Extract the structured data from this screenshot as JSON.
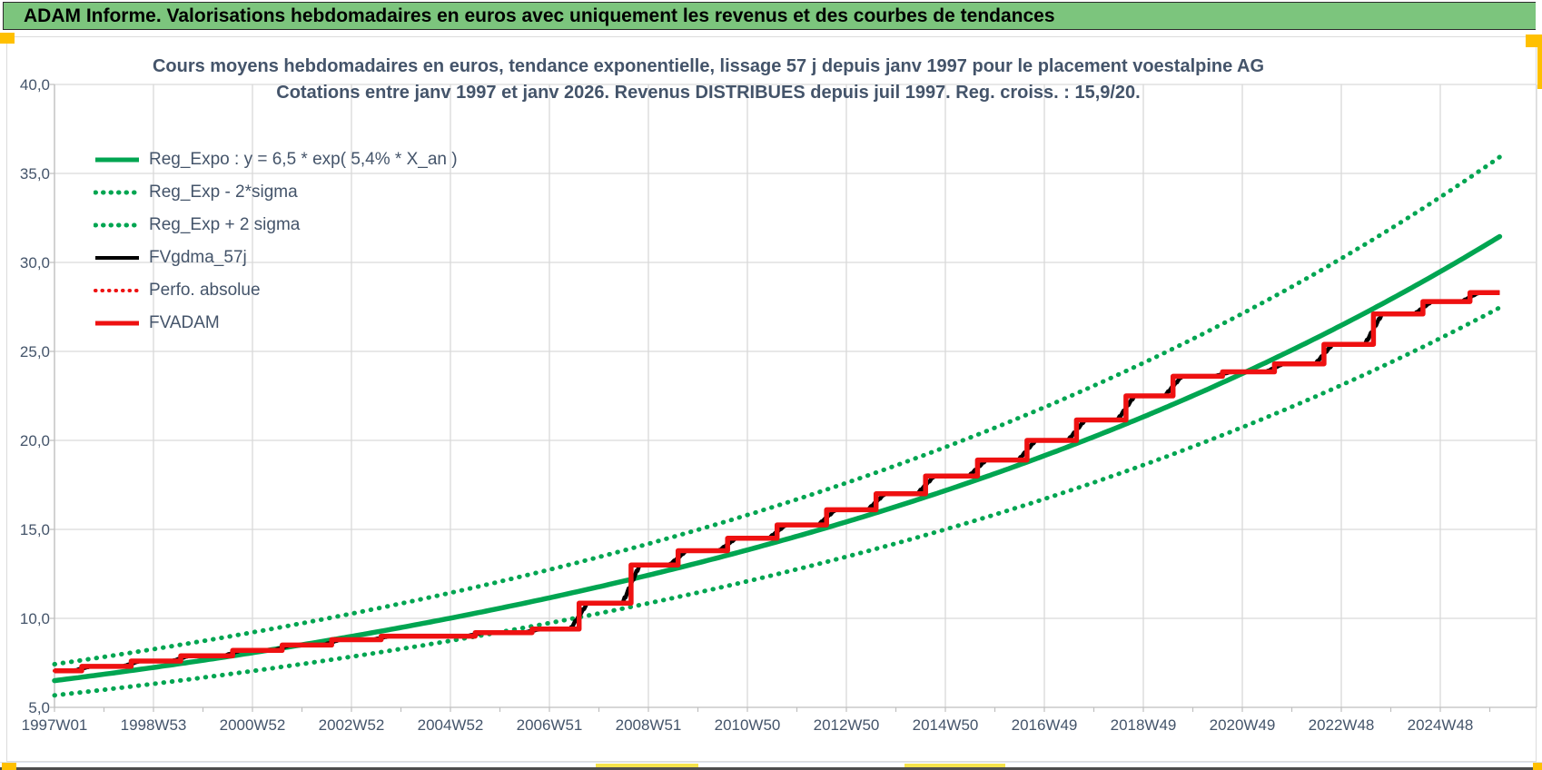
{
  "banner": {
    "text": "ADAM Informe. Valorisations hebdomadaires en euros avec uniquement les revenus et des courbes de tendances"
  },
  "chart": {
    "title_line1": "Cours moyens hebdomadaires en euros, tendance exponentielle, lissage 57 j depuis janv 1997 pour le placement voestalpine AG",
    "title_line2": "Cotations entre janv 1997 et janv 2026. Revenus DISTRIBUES depuis juil 1997. Reg. croiss. : 15,9/20.",
    "legend": [
      {
        "label": "Reg_Expo : y = 6,5 * exp( 5,4% *  X_an )",
        "color": "#00A551",
        "style": "solid",
        "weight": 5
      },
      {
        "label": "Reg_Exp - 2*sigma",
        "color": "#00A551",
        "style": "dotted",
        "weight": 5
      },
      {
        "label": "Reg_Exp + 2 sigma",
        "color": "#00A551",
        "style": "dotted",
        "weight": 5
      },
      {
        "label": "FVgdma_57j",
        "color": "#000000",
        "style": "solid",
        "weight": 4
      },
      {
        "label": "Perfo. absolue",
        "color": "#EE1111",
        "style": "dotted",
        "weight": 4
      },
      {
        "label": "FVADAM",
        "color": "#EE1111",
        "style": "solid",
        "weight": 5
      }
    ]
  },
  "chart_data": {
    "type": "line",
    "title": "Cours moyens hebdomadaires en euros, tendance exponentielle, lissage 57 j depuis janv 1997 pour le placement voestalpine AG",
    "subtitle": "Cotations entre janv 1997 et janv 2026. Revenus DISTRIBUES depuis juil 1997. Reg. croiss. : 15,9/20.",
    "x_axis": {
      "start_year": 1997,
      "end_year": 2027.4,
      "tick_years": [
        1997,
        1999,
        2001,
        2003,
        2005,
        2007,
        2009,
        2011,
        2013,
        2015,
        2017,
        2019,
        2021,
        2023,
        2025
      ],
      "tick_labels": [
        "1997W01",
        "1998W53",
        "2000W52",
        "2002W52",
        "2004W52",
        "2006W51",
        "2008W51",
        "2010W50",
        "2012W50",
        "2014W50",
        "2016W49",
        "2018W49",
        "2020W49",
        "2022W48",
        "2024W48"
      ],
      "minor_tick_interval_years": 1
    },
    "y_axis": {
      "min": 5,
      "max": 40,
      "step": 5,
      "tick_labels": [
        "5,0",
        "10,0",
        "15,0",
        "20,0",
        "25,0",
        "30,0",
        "35,0",
        "40,0"
      ]
    },
    "grid": true,
    "legend_position": "top-left-inside",
    "regression": {
      "formula": "y = 6,5 * exp( 5,4% * X_an )",
      "a": 6.5,
      "rate": 0.054,
      "band_upper_factor": 1.142,
      "band_lower_factor": 0.873
    },
    "fvadam": {
      "start": [
        1997.0,
        7.05
      ],
      "steps": [
        [
          1997.55,
          7.3
        ],
        [
          1998.55,
          7.6
        ],
        [
          1999.55,
          7.9
        ],
        [
          2000.6,
          8.2
        ],
        [
          2001.6,
          8.5
        ],
        [
          2002.6,
          8.8
        ],
        [
          2003.6,
          9.0
        ],
        [
          2005.5,
          9.2
        ],
        [
          2006.65,
          9.4
        ],
        [
          2007.6,
          10.85
        ],
        [
          2008.65,
          13.0
        ],
        [
          2009.6,
          13.8
        ],
        [
          2010.6,
          14.5
        ],
        [
          2011.6,
          15.25
        ],
        [
          2012.6,
          16.1
        ],
        [
          2013.6,
          17.0
        ],
        [
          2014.6,
          18.0
        ],
        [
          2015.65,
          18.9
        ],
        [
          2016.65,
          20.0
        ],
        [
          2017.65,
          21.15
        ],
        [
          2018.65,
          22.5
        ],
        [
          2019.6,
          23.6
        ],
        [
          2020.6,
          23.85
        ],
        [
          2021.65,
          24.3
        ],
        [
          2022.65,
          25.4
        ],
        [
          2023.65,
          27.1
        ],
        [
          2024.65,
          27.8
        ],
        [
          2025.6,
          28.3
        ]
      ],
      "end_year": 2026.2,
      "smoothing_window_years": 0.16
    },
    "series_names": [
      "Reg_Expo",
      "Reg_Exp - 2*sigma",
      "Reg_Exp + 2 sigma",
      "FVgdma_57j",
      "Perfo. absolue",
      "FVADAM"
    ],
    "colors": {
      "green": "#00A551",
      "red": "#EE1111",
      "black": "#000000",
      "grid": "#D9D9D9",
      "axis": "#BFBFBF",
      "text": "#44546A",
      "banner_green": "#7CC57D",
      "handle_orange": "#FFC000",
      "highlight_yellow": "#F5E34B",
      "bottom_bar": "#4D4D4D"
    }
  }
}
